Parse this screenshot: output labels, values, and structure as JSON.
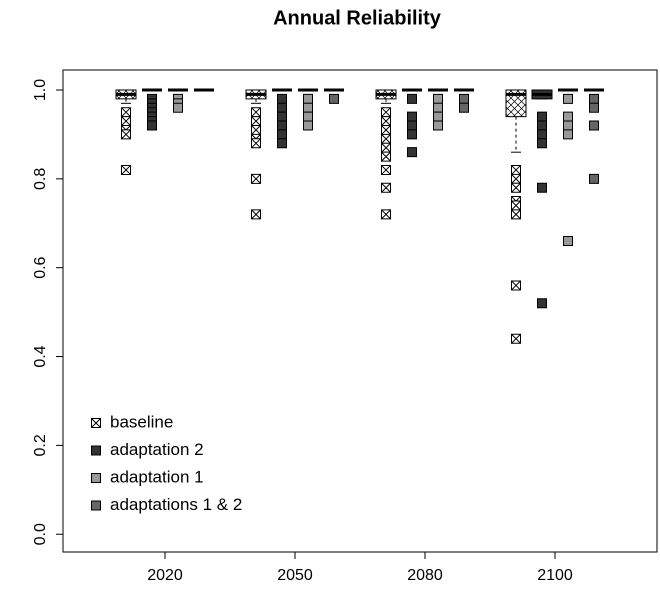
{
  "chart_data": {
    "type": "boxplot",
    "title": "Annual Reliability",
    "categories": [
      "2020",
      "2050",
      "2080",
      "2100"
    ],
    "ylim": [
      -0.04,
      1.045
    ],
    "yticks": [
      {
        "value": 0,
        "label": "0.0"
      },
      0.2,
      0.4,
      0.6,
      0.8,
      {
        "value": 1,
        "label": "1.0"
      }
    ],
    "legend": "bottom-left",
    "series": [
      {
        "name": "baseline",
        "color": "#ffffff",
        "pattern": "crosshatch",
        "boxes": [
          [
            0.97,
            0.98,
            0.99,
            1.0,
            1.0
          ],
          [
            0.97,
            0.98,
            0.99,
            1.0,
            1.0
          ],
          [
            0.97,
            0.98,
            0.99,
            1.0,
            1.0
          ],
          [
            0.86,
            0.94,
            0.99,
            1.0,
            1.0
          ]
        ],
        "outliers": [
          [
            0.95,
            0.93,
            0.91,
            0.9,
            0.82
          ],
          [
            0.95,
            0.93,
            0.91,
            0.89,
            0.88,
            0.8,
            0.72
          ],
          [
            0.95,
            0.93,
            0.91,
            0.89,
            0.87,
            0.85,
            0.82,
            0.78,
            0.72
          ],
          [
            0.82,
            0.8,
            0.78,
            0.75,
            0.74,
            0.72,
            0.56,
            0.44
          ]
        ]
      },
      {
        "name": "adaptation 2",
        "color": "#333333",
        "boxes": [
          [
            1,
            1,
            1,
            1,
            1
          ],
          [
            1,
            1,
            1,
            1,
            1
          ],
          [
            1,
            1,
            1,
            1,
            1
          ],
          [
            0.98,
            0.98,
            0.99,
            1.0,
            1.0
          ]
        ],
        "outliers": [
          [
            0.98,
            0.97,
            0.96,
            0.95,
            0.94,
            0.93,
            0.92
          ],
          [
            0.98,
            0.96,
            0.94,
            0.92,
            0.9,
            0.88
          ],
          [
            0.98,
            0.94,
            0.92,
            0.9,
            0.86
          ],
          [
            0.94,
            0.92,
            0.9,
            0.88,
            0.78,
            0.52
          ]
        ]
      },
      {
        "name": "adaptation 1",
        "color": "#999999",
        "boxes": [
          [
            1,
            1,
            1,
            1,
            1
          ],
          [
            1,
            1,
            1,
            1,
            1
          ],
          [
            1,
            1,
            1,
            1,
            1
          ],
          [
            1,
            1,
            1,
            1,
            1
          ]
        ],
        "outliers": [
          [
            0.98,
            0.97,
            0.96
          ],
          [
            0.98,
            0.96,
            0.94,
            0.92
          ],
          [
            0.98,
            0.96,
            0.94,
            0.92
          ],
          [
            0.98,
            0.94,
            0.92,
            0.9,
            0.66
          ]
        ]
      },
      {
        "name": "adaptations 1 & 2",
        "color": "#666666",
        "boxes": [
          [
            1,
            1,
            1,
            1,
            1
          ],
          [
            1,
            1,
            1,
            1,
            1
          ],
          [
            1,
            1,
            1,
            1,
            1
          ],
          [
            1,
            1,
            1,
            1,
            1
          ]
        ],
        "outliers": [
          [],
          [
            0.98
          ],
          [
            0.98,
            0.96
          ],
          [
            0.98,
            0.96,
            0.92,
            0.8
          ]
        ]
      }
    ]
  }
}
